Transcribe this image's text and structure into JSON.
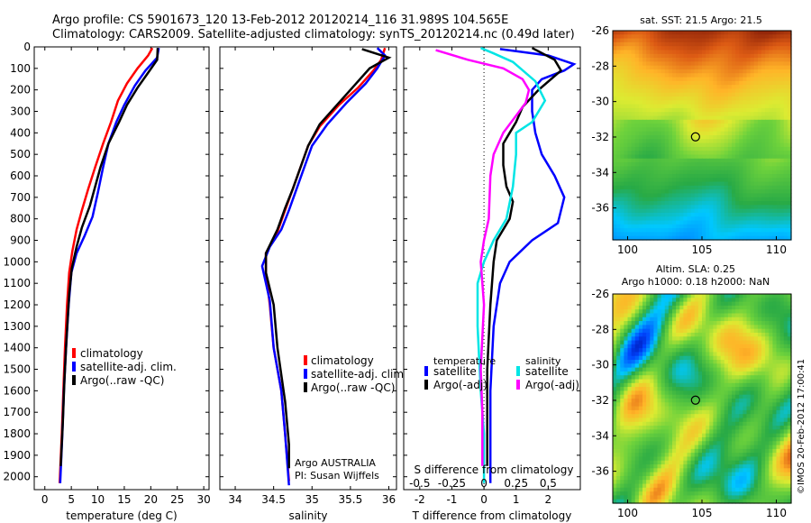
{
  "header": {
    "line1": "Argo profile: CS 5901673_120 13-Feb-2012 20120214_116 31.989S 104.565E",
    "line2": "Climatology: CARS2009. Satellite-adjusted climatology: synTS_20120214.nc (0.49d later)"
  },
  "colors": {
    "climatology": "#ff0000",
    "satellite": "#0000ff",
    "argo": "#000000",
    "sal_sat": "#00e5e5",
    "sal_argo": "#ff00ff"
  },
  "chart_data": [
    {
      "id": "temperature",
      "type": "line",
      "xlabel": "temperature (deg C)",
      "xlim": [
        -2,
        31
      ],
      "ylim": [
        2060,
        0
      ],
      "xticks": [
        0,
        5,
        10,
        15,
        20,
        25,
        30
      ],
      "yticks": [
        0,
        100,
        200,
        300,
        400,
        500,
        600,
        700,
        800,
        900,
        1000,
        1100,
        1200,
        1300,
        1400,
        1500,
        1600,
        1700,
        1800,
        1900,
        2000
      ],
      "legend": {
        "position": "center-left",
        "items": [
          "climatology",
          "satellite-adj. clim.",
          "Argo(..raw -QC)"
        ]
      },
      "series": [
        {
          "name": "climatology",
          "color": "#ff0000",
          "points": [
            [
              20.3,
              5
            ],
            [
              19.5,
              40
            ],
            [
              17.5,
              100
            ],
            [
              15.5,
              170
            ],
            [
              13.8,
              250
            ],
            [
              12.5,
              350
            ],
            [
              11,
              450
            ],
            [
              9.5,
              560
            ],
            [
              8.2,
              660
            ],
            [
              7,
              760
            ],
            [
              6,
              850
            ],
            [
              5.2,
              950
            ],
            [
              4.6,
              1050
            ],
            [
              4.2,
              1200
            ],
            [
              3.8,
              1400
            ],
            [
              3.5,
              1600
            ],
            [
              3.2,
              1800
            ],
            [
              2.8,
              2030
            ]
          ]
        },
        {
          "name": "satellite-adj. clim.",
          "color": "#0000ff",
          "points": [
            [
              21.5,
              5
            ],
            [
              21.2,
              50
            ],
            [
              19,
              110
            ],
            [
              17,
              180
            ],
            [
              15,
              270
            ],
            [
              13.5,
              350
            ],
            [
              12,
              450
            ],
            [
              11,
              560
            ],
            [
              10,
              680
            ],
            [
              9,
              790
            ],
            [
              7.5,
              880
            ],
            [
              6,
              960
            ],
            [
              5,
              1050
            ],
            [
              4.5,
              1200
            ],
            [
              4,
              1400
            ],
            [
              3.6,
              1600
            ],
            [
              3.3,
              1800
            ],
            [
              2.9,
              2030
            ]
          ]
        },
        {
          "name": "Argo(..raw -QC)",
          "color": "#000000",
          "points": [
            [
              21.3,
              5
            ],
            [
              21.2,
              60
            ],
            [
              19.5,
              120
            ],
            [
              17.5,
              190
            ],
            [
              15.5,
              270
            ],
            [
              14,
              350
            ],
            [
              12,
              450
            ],
            [
              10.5,
              560
            ],
            [
              9.5,
              650
            ],
            [
              8.5,
              740
            ],
            [
              7,
              840
            ],
            [
              6,
              930
            ],
            [
              5.1,
              1030
            ],
            [
              4.6,
              1150
            ],
            [
              4.1,
              1350
            ],
            [
              3.7,
              1550
            ],
            [
              3.4,
              1750
            ],
            [
              3.0,
              1950
            ]
          ]
        }
      ]
    },
    {
      "id": "salinity",
      "type": "line",
      "xlabel": "salinity",
      "xlim": [
        33.8,
        36.1
      ],
      "ylim": [
        2060,
        0
      ],
      "xticks": [
        34,
        34.5,
        35,
        35.5,
        36
      ],
      "xticklabels": [
        "34",
        "34.5",
        "35",
        "35.5",
        "36"
      ],
      "legend": {
        "position": "center",
        "items": [
          "climatology",
          "satellite-adj. clim.",
          "Argo(..raw -QC)"
        ]
      },
      "annotation": [
        "Argo AUSTRALIA",
        "PI: Susan Wijffels"
      ],
      "series": [
        {
          "name": "climatology",
          "color": "#ff0000",
          "points": [
            [
              35.95,
              5
            ],
            [
              35.9,
              60
            ],
            [
              35.8,
              110
            ],
            [
              35.6,
              190
            ],
            [
              35.35,
              270
            ],
            [
              35.1,
              370
            ],
            [
              34.95,
              460
            ],
            [
              34.85,
              560
            ],
            [
              34.75,
              660
            ],
            [
              34.65,
              760
            ],
            [
              34.55,
              860
            ],
            [
              34.4,
              960
            ],
            [
              34.4,
              1050
            ],
            [
              34.45,
              1200
            ],
            [
              34.5,
              1400
            ],
            [
              34.6,
              1600
            ],
            [
              34.65,
              1800
            ],
            [
              34.7,
              2020
            ]
          ]
        },
        {
          "name": "satellite-adj. clim.",
          "color": "#0000ff",
          "points": [
            [
              35.85,
              5
            ],
            [
              35.95,
              40
            ],
            [
              35.85,
              100
            ],
            [
              35.7,
              170
            ],
            [
              35.45,
              260
            ],
            [
              35.2,
              360
            ],
            [
              35,
              460
            ],
            [
              34.9,
              560
            ],
            [
              34.8,
              660
            ],
            [
              34.7,
              760
            ],
            [
              34.6,
              850
            ],
            [
              34.45,
              930
            ],
            [
              34.35,
              1020
            ],
            [
              34.45,
              1180
            ],
            [
              34.5,
              1400
            ],
            [
              34.6,
              1600
            ],
            [
              34.65,
              1800
            ],
            [
              34.7,
              2040
            ]
          ]
        },
        {
          "name": "Argo(..raw -QC)",
          "color": "#000000",
          "points": [
            [
              35.65,
              10
            ],
            [
              36.0,
              50
            ],
            [
              35.75,
              100
            ],
            [
              35.55,
              180
            ],
            [
              35.35,
              260
            ],
            [
              35.1,
              360
            ],
            [
              34.95,
              460
            ],
            [
              34.85,
              560
            ],
            [
              34.75,
              660
            ],
            [
              34.65,
              750
            ],
            [
              34.55,
              850
            ],
            [
              34.4,
              960
            ],
            [
              34.4,
              1050
            ],
            [
              34.5,
              1200
            ],
            [
              34.55,
              1400
            ],
            [
              34.65,
              1650
            ],
            [
              34.7,
              1850
            ],
            [
              34.7,
              1960
            ]
          ]
        }
      ]
    },
    {
      "id": "difference",
      "type": "line",
      "xlabel": "T difference from climatology",
      "xlim": [
        -2.5,
        3
      ],
      "ylim": [
        2060,
        0
      ],
      "xticks": [
        -2,
        -1,
        0,
        1,
        2
      ],
      "top_axis_label": "S difference from climatology",
      "top_ticks": [
        -0.5,
        -0.25,
        0,
        0.25,
        0.5
      ],
      "top_ticklabels": [
        "-0.5",
        "-0.25",
        "0",
        "0.25",
        "0.5"
      ],
      "legend": {
        "position": "center",
        "titles": [
          "temperature",
          "salinity"
        ],
        "items": [
          "satellite",
          "Argo(-adj)",
          "satellite",
          "Argo(-adj)"
        ]
      },
      "series": [
        {
          "name": "satellite",
          "group": "temperature",
          "color": "#0000ff",
          "points": [
            [
              0.5,
              10
            ],
            [
              2,
              40
            ],
            [
              2.8,
              80
            ],
            [
              2.5,
              110
            ],
            [
              1.8,
              150
            ],
            [
              1.5,
              200
            ],
            [
              1.5,
              300
            ],
            [
              1.6,
              400
            ],
            [
              1.8,
              500
            ],
            [
              2.2,
              600
            ],
            [
              2.5,
              700
            ],
            [
              2.3,
              820
            ],
            [
              1.5,
              900
            ],
            [
              0.8,
              1000
            ],
            [
              0.5,
              1100
            ],
            [
              0.3,
              1300
            ],
            [
              0.2,
              1600
            ],
            [
              0.2,
              1800
            ],
            [
              0.2,
              2030
            ]
          ]
        },
        {
          "name": "Argo(-adj)",
          "group": "temperature",
          "color": "#000000",
          "points": [
            [
              1.5,
              5
            ],
            [
              2.2,
              60
            ],
            [
              2.4,
              110
            ],
            [
              1.7,
              200
            ],
            [
              1.2,
              280
            ],
            [
              1.0,
              350
            ],
            [
              0.8,
              400
            ],
            [
              0.6,
              450
            ],
            [
              0.6,
              550
            ],
            [
              0.7,
              650
            ],
            [
              0.9,
              720
            ],
            [
              0.8,
              800
            ],
            [
              0.4,
              900
            ],
            [
              0.3,
              1000
            ],
            [
              0.2,
              1200
            ],
            [
              0.1,
              1500
            ],
            [
              0.1,
              1800
            ],
            [
              0.1,
              1950
            ]
          ]
        },
        {
          "name": "satellite",
          "group": "salinity",
          "color": "#00e5e5",
          "points": [
            [
              -0.1,
              5
            ],
            [
              0.3,
              30
            ],
            [
              0.9,
              70
            ],
            [
              1.6,
              160
            ],
            [
              1.9,
              250
            ],
            [
              1.7,
              300
            ],
            [
              1.5,
              350
            ],
            [
              1.0,
              400
            ],
            [
              1.0,
              500
            ],
            [
              0.9,
              650
            ],
            [
              0.7,
              800
            ],
            [
              0.3,
              900
            ],
            [
              0,
              1000
            ],
            [
              -0.2,
              1100
            ],
            [
              -0.2,
              1300
            ],
            [
              -0.1,
              1600
            ],
            [
              0,
              1800
            ],
            [
              0,
              2030
            ]
          ]
        },
        {
          "name": "Argo(-adj)",
          "group": "salinity",
          "color": "#ff00ff",
          "points": [
            [
              -1.5,
              15
            ],
            [
              -0.5,
              60
            ],
            [
              0.6,
              100
            ],
            [
              1.2,
              150
            ],
            [
              1.4,
              200
            ],
            [
              1.3,
              260
            ],
            [
              1.1,
              300
            ],
            [
              0.6,
              400
            ],
            [
              0.3,
              500
            ],
            [
              0.2,
              600
            ],
            [
              0.15,
              800
            ],
            [
              0,
              900
            ],
            [
              -0.1,
              1000
            ],
            [
              0,
              1200
            ],
            [
              -0.1,
              1500
            ],
            [
              -0.05,
              1700
            ],
            [
              -0.05,
              1950
            ]
          ]
        }
      ]
    },
    {
      "id": "sst_map",
      "type": "heatmap",
      "title": "sat. SST: 21.5  Argo: 21.5",
      "xlim": [
        99,
        111
      ],
      "ylim": [
        -37.8,
        -26
      ],
      "xticks": [
        100,
        105,
        110
      ],
      "yticks": [
        -26,
        -28,
        -30,
        -32,
        -34,
        -36
      ],
      "marker": [
        104.565,
        -31.989
      ]
    },
    {
      "id": "sla_map",
      "type": "heatmap",
      "title": [
        "Altim. SLA: 0.25",
        "Argo h1000: 0.18 h2000: NaN"
      ],
      "xlim": [
        99,
        111
      ],
      "ylim": [
        -37.8,
        -26
      ],
      "xticks": [
        100,
        105,
        110
      ],
      "yticks": [
        -26,
        -28,
        -30,
        -32,
        -34,
        -36
      ],
      "marker": [
        104.565,
        -31.989
      ]
    }
  ],
  "footer": {
    "credit": "©IMOS 20-Feb-2012 17:00:41"
  }
}
